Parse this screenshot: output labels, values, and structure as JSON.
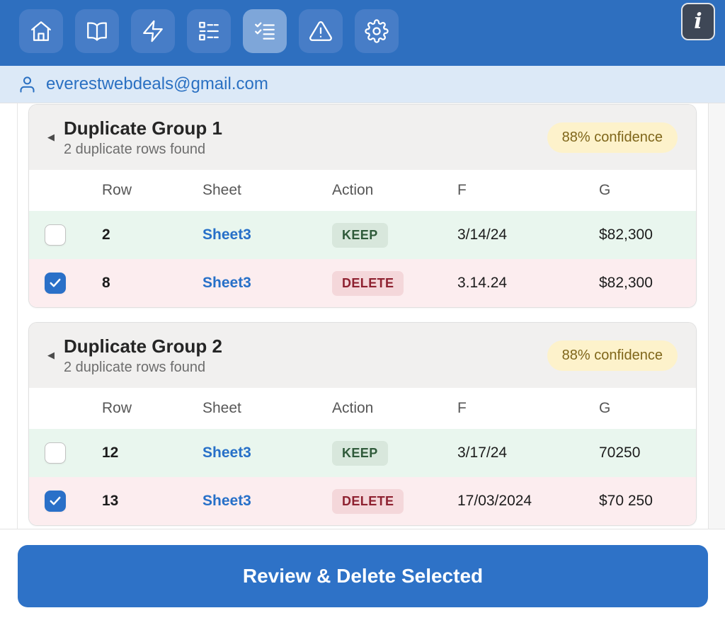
{
  "toolbar": {
    "buttons": [
      {
        "name": "home"
      },
      {
        "name": "book"
      },
      {
        "name": "lightning"
      },
      {
        "name": "list"
      },
      {
        "name": "checklist"
      },
      {
        "name": "warning"
      },
      {
        "name": "settings"
      }
    ],
    "active_index": 4
  },
  "info_button": {
    "label": "i"
  },
  "account": {
    "email": "everestwebdeals@gmail.com"
  },
  "ui": {
    "collapse_icon": "◀"
  },
  "groups": [
    {
      "title": "Duplicate Group 1",
      "subtitle": "2 duplicate rows found",
      "confidence": "88% confidence",
      "columns": [
        "Row",
        "Sheet",
        "Action",
        "F",
        "G"
      ],
      "rows": [
        {
          "checked": false,
          "row": "2",
          "sheet": "Sheet3",
          "action": "KEEP",
          "f": "3/14/24",
          "g": "$82,300"
        },
        {
          "checked": true,
          "row": "8",
          "sheet": "Sheet3",
          "action": "DELETE",
          "f": "3.14.24",
          "g": "$82,300"
        }
      ]
    },
    {
      "title": "Duplicate Group 2",
      "subtitle": "2 duplicate rows found",
      "confidence": "88% confidence",
      "columns": [
        "Row",
        "Sheet",
        "Action",
        "F",
        "G"
      ],
      "rows": [
        {
          "checked": false,
          "row": "12",
          "sheet": "Sheet3",
          "action": "KEEP",
          "f": "3/17/24",
          "g": "70250"
        },
        {
          "checked": true,
          "row": "13",
          "sheet": "Sheet3",
          "action": "DELETE",
          "f": "17/03/2024",
          "g": "$70 250"
        }
      ]
    }
  ],
  "footer": {
    "button_label": "Review & Delete Selected"
  },
  "colors": {
    "header_blue": "#2e6fbf",
    "accent_blue": "#2e72c7",
    "email_bar_bg": "#dce9f7",
    "link_blue": "#2770c8",
    "keep_row_bg": "#e9f6ee",
    "delete_row_bg": "#fcedef",
    "keep_badge_bg": "#d8e7dc",
    "keep_badge_text": "#2f5a3a",
    "delete_badge_bg": "#f4d7da",
    "delete_badge_text": "#8e2130",
    "confidence_bg": "#fdf2cb",
    "confidence_text": "#7f661a"
  }
}
